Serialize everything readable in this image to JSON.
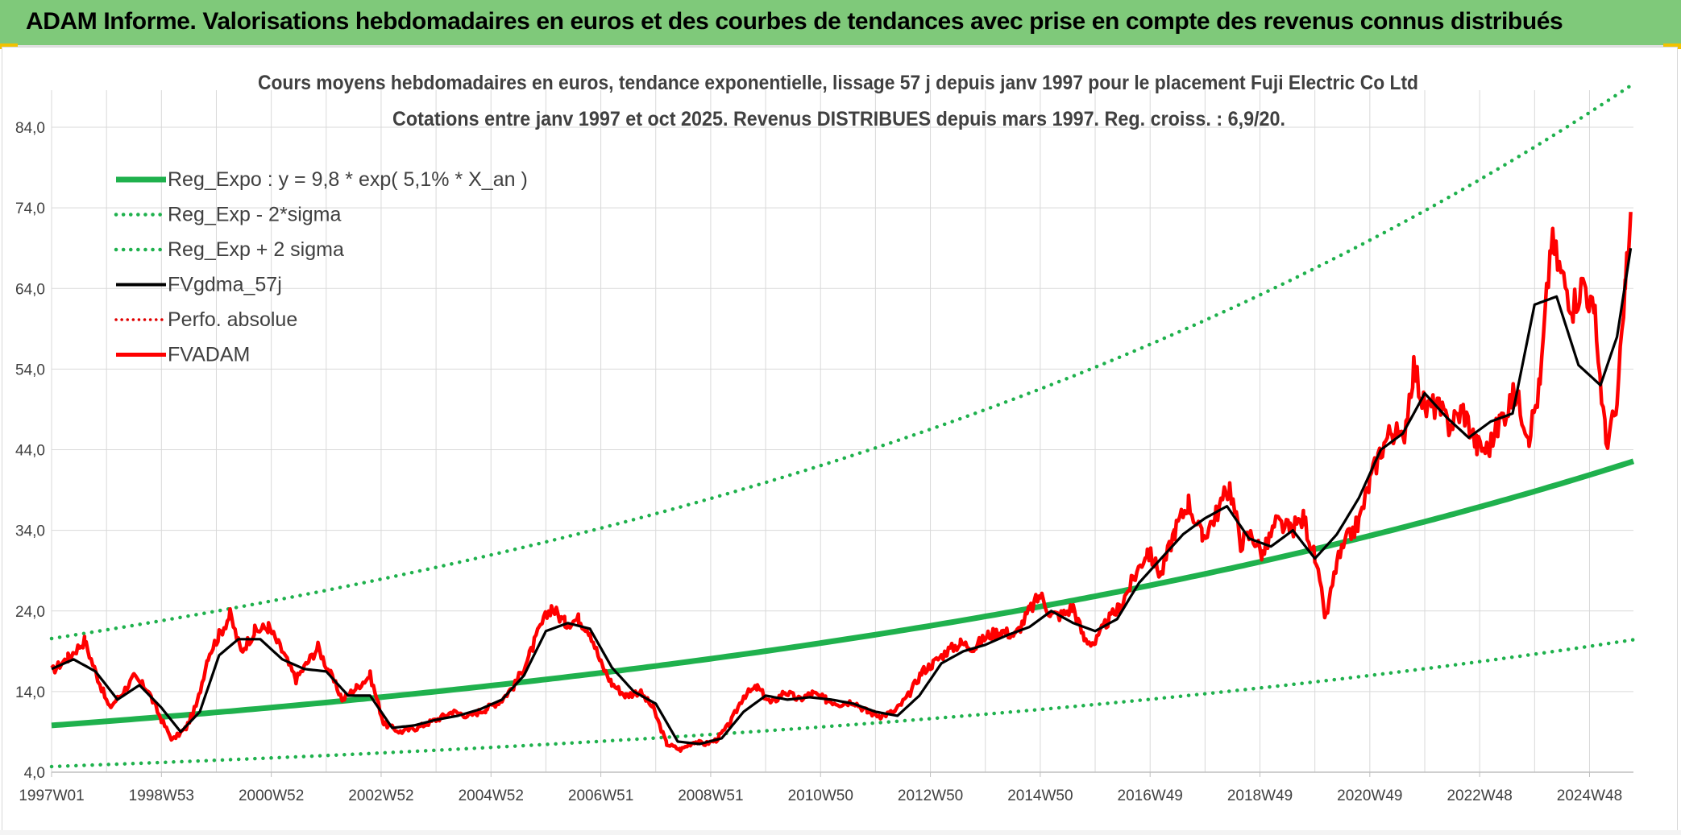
{
  "header": {
    "title": "ADAM Informe. Valorisations hebdomadaires en euros et des courbes de tendances avec prise en compte des revenus connus distribués"
  },
  "colors": {
    "banner": "#7fc97a",
    "trend": "#1fb14d",
    "trend_bands": "#1fb14d",
    "smoothed": "#000000",
    "perf": "#e00000",
    "price": "#ff0000",
    "grid": "#d9d9d9"
  },
  "chart_data": {
    "type": "line",
    "title_line1": "Cours moyens hebdomadaires en euros, tendance exponentielle, lissage 57 j depuis janv 1997 pour le placement Fuji Electric Co Ltd",
    "title_line2": "Cotations entre janv 1997 et oct 2025. Revenus DISTRIBUES depuis mars 1997. Reg. croiss. : 6,9/20.",
    "xlabel": "",
    "ylabel": "",
    "xlim": [
      1997.0,
      2025.8
    ],
    "ylim": [
      4,
      88
    ],
    "y_ticks": [
      4,
      14,
      24,
      34,
      44,
      54,
      64,
      74,
      84
    ],
    "y_tick_labels": [
      "4,0",
      "14,0",
      "24,0",
      "34,0",
      "44,0",
      "54,0",
      "64,0",
      "74,0",
      "84,0"
    ],
    "x_ticks": [
      1997.0,
      1999.0,
      2001.0,
      2003.0,
      2005.0,
      2007.0,
      2009.0,
      2011.0,
      2013.0,
      2015.0,
      2017.0,
      2019.0,
      2021.0,
      2023.0,
      2025.0
    ],
    "x_tick_labels": [
      "1997W01",
      "1998W53",
      "2000W52",
      "2002W52",
      "2004W52",
      "2006W51",
      "2008W51",
      "2010W50",
      "2012W50",
      "2014W50",
      "2016W49",
      "2018W49",
      "2020W49",
      "2022W48",
      "2024W48"
    ],
    "grid": true,
    "legend_position": "top-left",
    "legend": [
      {
        "label": "Reg_Expo : y = 9,8 * exp( 5,1% *  X_an )",
        "style": "solid-green"
      },
      {
        "label": "Reg_Exp - 2*sigma",
        "style": "dotted-green"
      },
      {
        "label": "Reg_Exp + 2 sigma",
        "style": "dotted-green"
      },
      {
        "label": "FVgdma_57j",
        "style": "solid-black"
      },
      {
        "label": "Perfo. absolue",
        "style": "dotted-red"
      },
      {
        "label": "FVADAM",
        "style": "solid-red"
      }
    ],
    "regression": {
      "a": 9.8,
      "rate": 0.051,
      "lower_factor": 0.48,
      "upper_factor": 2.1
    },
    "series": [
      {
        "name": "FVADAM",
        "x": [
          1997.0,
          1997.3,
          1997.6,
          1997.85,
          1998.05,
          1998.25,
          1998.5,
          1998.75,
          1999.0,
          1999.2,
          1999.45,
          1999.65,
          1999.85,
          2000.05,
          2000.25,
          2000.45,
          2000.7,
          2000.95,
          2001.2,
          2001.45,
          2001.65,
          2001.85,
          2002.05,
          2002.3,
          2002.55,
          2002.8,
          2003.05,
          2003.35,
          2003.65,
          2004.0,
          2004.3,
          2004.6,
          2004.9,
          2005.2,
          2005.45,
          2005.7,
          2005.9,
          2006.1,
          2006.35,
          2006.6,
          2006.8,
          2007.0,
          2007.2,
          2007.45,
          2007.7,
          2007.95,
          2008.2,
          2008.45,
          2008.7,
          2008.9,
          2009.1,
          2009.35,
          2009.6,
          2009.85,
          2010.1,
          2010.35,
          2010.6,
          2010.85,
          2011.1,
          2011.35,
          2011.6,
          2011.85,
          2012.1,
          2012.35,
          2012.6,
          2012.85,
          2013.05,
          2013.3,
          2013.55,
          2013.8,
          2014.05,
          2014.3,
          2014.55,
          2014.8,
          2015.0,
          2015.2,
          2015.4,
          2015.6,
          2015.8,
          2016.0,
          2016.2,
          2016.45,
          2016.7,
          2016.95,
          2017.2,
          2017.45,
          2017.7,
          2017.95,
          2018.2,
          2018.45,
          2018.65,
          2018.85,
          2019.05,
          2019.3,
          2019.55,
          2019.8,
          2020.0,
          2020.2,
          2020.4,
          2020.6,
          2020.8,
          2021.0,
          2021.2,
          2021.4,
          2021.6,
          2021.8,
          2022.0,
          2022.2,
          2022.45,
          2022.7,
          2022.95,
          2023.15,
          2023.4,
          2023.65,
          2023.9,
          2024.1,
          2024.3,
          2024.5,
          2024.7,
          2024.9,
          2025.1,
          2025.3,
          2025.5,
          2025.65,
          2025.75
        ],
        "values": [
          16.5,
          18.2,
          20.3,
          15.5,
          12.0,
          13.5,
          15.8,
          14.2,
          10.5,
          8.0,
          9.5,
          12.5,
          18.5,
          21.0,
          23.5,
          19.0,
          21.5,
          22.0,
          19.0,
          15.5,
          17.5,
          19.5,
          16.5,
          13.0,
          14.5,
          16.0,
          10.0,
          9.0,
          9.5,
          10.5,
          11.5,
          11.0,
          11.8,
          13.0,
          15.0,
          18.5,
          22.0,
          24.5,
          22.5,
          23.0,
          21.5,
          17.5,
          15.0,
          13.5,
          14.0,
          12.0,
          7.5,
          6.8,
          7.8,
          7.5,
          8.0,
          10.0,
          13.5,
          14.5,
          12.5,
          14.0,
          13.0,
          13.8,
          13.0,
          12.5,
          12.8,
          11.5,
          11.0,
          11.5,
          13.5,
          16.5,
          17.5,
          19.0,
          20.0,
          19.5,
          21.0,
          21.5,
          21.0,
          24.0,
          26.0,
          23.5,
          23.5,
          24.5,
          20.5,
          20.0,
          22.5,
          24.5,
          28.0,
          31.5,
          28.5,
          34.0,
          37.5,
          33.0,
          36.0,
          39.5,
          32.5,
          33.5,
          31.0,
          35.0,
          34.0,
          35.5,
          30.5,
          23.0,
          30.0,
          33.0,
          35.0,
          40.0,
          44.0,
          46.5,
          45.0,
          54.5,
          49.0,
          49.5,
          47.0,
          49.0,
          44.5,
          44.0,
          48.0,
          51.0,
          46.0,
          52.0,
          70.0,
          65.5,
          62.0,
          65.0,
          60.0,
          45.0,
          49.0,
          64.0,
          73.5
        ]
      },
      {
        "name": "FVgdma_57j",
        "x": [
          1997.0,
          1997.4,
          1997.8,
          1998.2,
          1998.6,
          1999.0,
          1999.35,
          1999.7,
          2000.05,
          2000.4,
          2000.8,
          2001.2,
          2001.6,
          2002.0,
          2002.4,
          2002.8,
          2003.2,
          2003.6,
          2004.0,
          2004.4,
          2004.8,
          2005.2,
          2005.6,
          2006.0,
          2006.4,
          2006.8,
          2007.2,
          2007.6,
          2008.0,
          2008.4,
          2008.8,
          2009.2,
          2009.6,
          2010.0,
          2010.4,
          2010.8,
          2011.2,
          2011.6,
          2012.0,
          2012.4,
          2012.8,
          2013.2,
          2013.6,
          2014.0,
          2014.4,
          2014.8,
          2015.2,
          2015.6,
          2016.0,
          2016.4,
          2016.8,
          2017.2,
          2017.6,
          2018.0,
          2018.4,
          2018.8,
          2019.2,
          2019.6,
          2020.0,
          2020.4,
          2020.8,
          2021.2,
          2021.6,
          2022.0,
          2022.4,
          2022.8,
          2023.2,
          2023.6,
          2024.0,
          2024.4,
          2024.8,
          2025.2,
          2025.5,
          2025.75
        ],
        "values": [
          16.8,
          18.0,
          16.5,
          13.0,
          14.8,
          12.0,
          9.0,
          11.5,
          18.5,
          20.5,
          20.5,
          18.0,
          16.8,
          16.5,
          13.5,
          13.5,
          9.5,
          9.8,
          10.5,
          11.0,
          11.8,
          13.0,
          16.0,
          21.5,
          22.5,
          21.8,
          17.0,
          14.0,
          12.5,
          7.8,
          7.5,
          8.2,
          11.5,
          13.5,
          13.0,
          13.3,
          13.0,
          12.5,
          11.5,
          11.0,
          13.5,
          17.5,
          19.0,
          19.8,
          21.0,
          22.0,
          24.0,
          22.5,
          21.5,
          23.0,
          27.5,
          30.5,
          33.5,
          35.5,
          37.0,
          33.0,
          32.0,
          34.0,
          30.5,
          33.5,
          38.0,
          44.0,
          46.0,
          51.0,
          48.0,
          45.5,
          47.5,
          48.5,
          62.0,
          63.0,
          54.5,
          52.0,
          58.0,
          69.0
        ]
      }
    ]
  }
}
